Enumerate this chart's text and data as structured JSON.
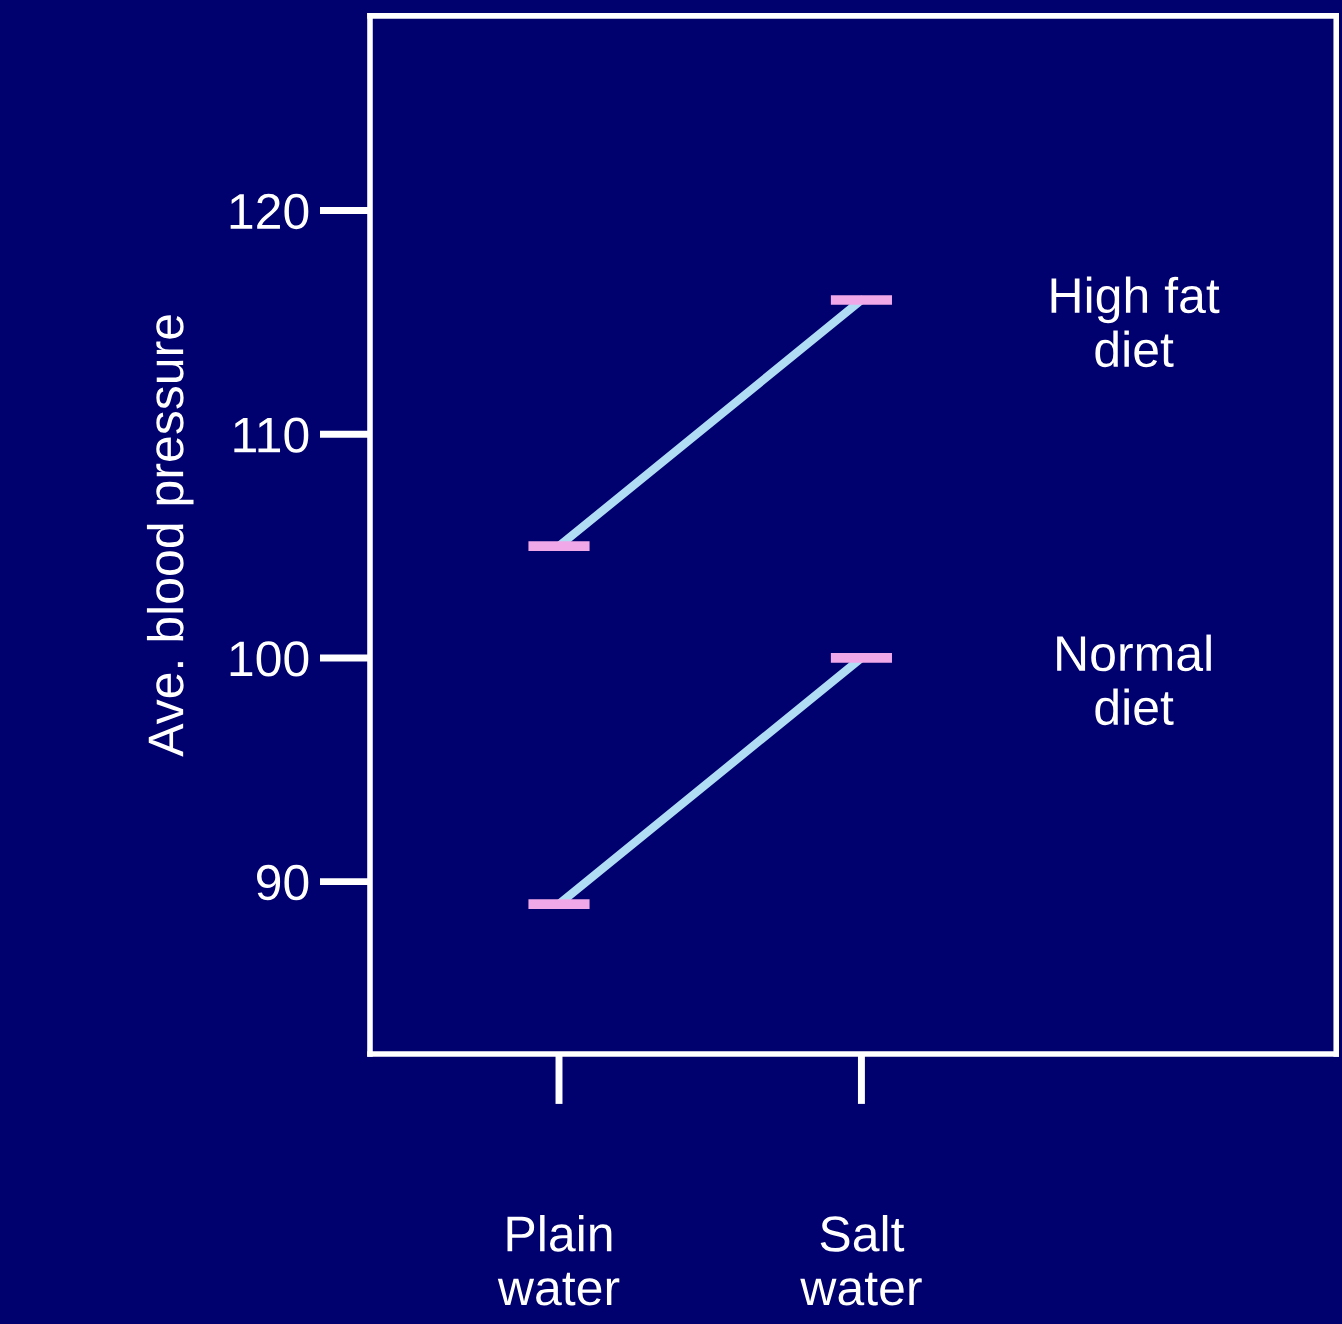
{
  "chart_data": {
    "type": "line",
    "ylabel": "Ave. blood pressure",
    "categories": [
      "Plain\nwater",
      "Salt\nwater"
    ],
    "ylim": [
      82.3,
      128.7
    ],
    "yticks": [
      90,
      100,
      110,
      120
    ],
    "grid": false,
    "legend": false,
    "line_style": "solid",
    "series": [
      {
        "name": "High fat\ndiet",
        "color": "#b0dcf4",
        "colors": [
          "#f0a8e8",
          "#f0a8e8"
        ],
        "values": [
          105,
          116
        ]
      },
      {
        "name": "Normal\ndiet",
        "color": "#b0dcf4",
        "colors": [
          "#f0a8e8",
          "#f0a8e8"
        ],
        "values": [
          89,
          100
        ]
      }
    ]
  }
}
